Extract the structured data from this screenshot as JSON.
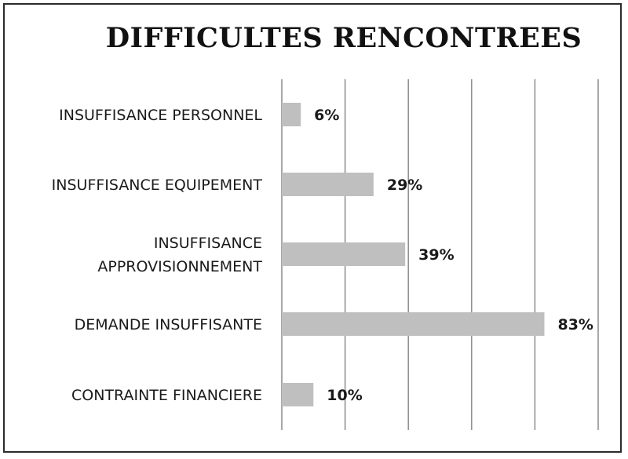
{
  "chart_data": {
    "type": "bar",
    "orientation": "horizontal",
    "title": "DIFFICULTES RENCONTREES",
    "categories": [
      [
        "INSUFFISANCE PERSONNEL"
      ],
      [
        "INSUFFISANCE EQUIPEMENT"
      ],
      [
        "INSUFFISANCE",
        "APPROVISIONNEMENT"
      ],
      [
        "DEMANDE INSUFFISANTE"
      ],
      [
        "CONTRAINTE FINANCIERE"
      ]
    ],
    "values": [
      6,
      29,
      39,
      83,
      10
    ],
    "value_labels": [
      "6%",
      "29%",
      "39%",
      "83%",
      "10%"
    ],
    "xlim": [
      0,
      100
    ],
    "grid": true,
    "legend": "none",
    "bar_color": "#bfbfbf",
    "grid_color": "#8c8c8c"
  }
}
